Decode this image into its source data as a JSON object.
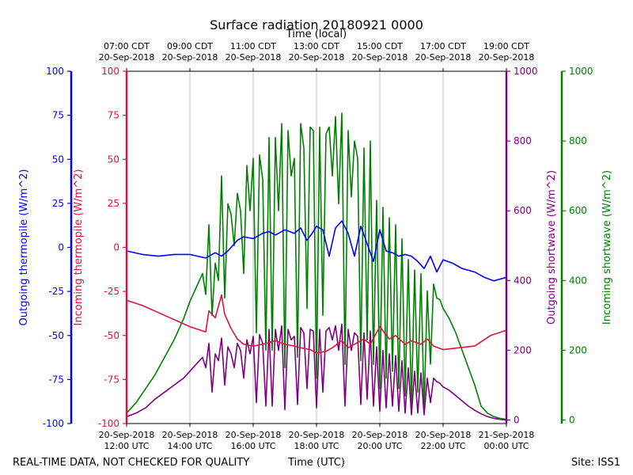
{
  "chart_data": {
    "type": "line",
    "title": "Surface radiation 20180921 0000",
    "top_axis_label": "Time (local)",
    "xlabel": "Time (UTC)",
    "footer_left": "REAL-TIME DATA, NOT CHECKED FOR QUALITY",
    "footer_right": "Site: ISS1",
    "x_domain": [
      12,
      24
    ],
    "bottom_ticks": [
      {
        "x": 12,
        "line1": "20-Sep-2018",
        "line2": "12:00 UTC"
      },
      {
        "x": 14,
        "line1": "20-Sep-2018",
        "line2": "14:00 UTC"
      },
      {
        "x": 16,
        "line1": "20-Sep-2018",
        "line2": "16:00 UTC"
      },
      {
        "x": 18,
        "line1": "20-Sep-2018",
        "line2": "18:00 UTC"
      },
      {
        "x": 20,
        "line1": "20-Sep-2018",
        "line2": "20:00 UTC"
      },
      {
        "x": 22,
        "line1": "20-Sep-2018",
        "line2": "22:00 UTC"
      },
      {
        "x": 24,
        "line1": "21-Sep-2018",
        "line2": "00:00 UTC"
      }
    ],
    "top_ticks": [
      {
        "x": 12,
        "line1": "07:00 CDT",
        "line2": "20-Sep-2018"
      },
      {
        "x": 14,
        "line1": "09:00 CDT",
        "line2": "20-Sep-2018"
      },
      {
        "x": 16,
        "line1": "11:00 CDT",
        "line2": "20-Sep-2018"
      },
      {
        "x": 18,
        "line1": "13:00 CDT",
        "line2": "20-Sep-2018"
      },
      {
        "x": 20,
        "line1": "15:00 CDT",
        "line2": "20-Sep-2018"
      },
      {
        "x": 22,
        "line1": "17:00 CDT",
        "line2": "20-Sep-2018"
      },
      {
        "x": 24,
        "line1": "19:00 CDT",
        "line2": "20-Sep-2018"
      }
    ],
    "axes": [
      {
        "id": "out_thermo",
        "label": "Outgoing thermopile (W/m^2)",
        "color": "#0000ff",
        "ylim": [
          -100,
          100
        ],
        "ticks": [
          -100,
          -75,
          -50,
          -25,
          0,
          25,
          50,
          75,
          100
        ]
      },
      {
        "id": "in_thermo",
        "label": "Incoming thermopile (W/m^2)",
        "color": "#dc143c",
        "ylim": [
          -100,
          100
        ],
        "ticks": [
          -100,
          -75,
          -50,
          -25,
          0,
          25,
          50,
          75,
          100
        ]
      },
      {
        "id": "out_sw",
        "label": "Outgoing shortwave (W/m^2)",
        "color": "#800080",
        "ylim": [
          -10,
          1000
        ],
        "ticks": [
          0,
          200,
          400,
          600,
          800,
          1000
        ]
      },
      {
        "id": "in_sw",
        "label": "Incoming shortwave (W/m^2)",
        "color": "#008000",
        "ylim": [
          -10,
          1000
        ],
        "ticks": [
          0,
          200,
          400,
          600,
          800,
          1000
        ]
      }
    ],
    "series": [
      {
        "name": "Incoming shortwave",
        "axis": "in_sw",
        "color": "#008000",
        "x": [
          12.0,
          12.3,
          12.6,
          12.9,
          13.2,
          13.5,
          13.8,
          14.0,
          14.2,
          14.4,
          14.5,
          14.6,
          14.7,
          14.8,
          14.9,
          15.0,
          15.1,
          15.2,
          15.3,
          15.4,
          15.5,
          15.6,
          15.7,
          15.8,
          15.9,
          16.0,
          16.1,
          16.2,
          16.3,
          16.4,
          16.5,
          16.6,
          16.7,
          16.8,
          16.9,
          17.0,
          17.1,
          17.2,
          17.3,
          17.4,
          17.5,
          17.6,
          17.7,
          17.8,
          17.9,
          18.0,
          18.1,
          18.2,
          18.3,
          18.4,
          18.5,
          18.6,
          18.7,
          18.8,
          18.9,
          19.0,
          19.1,
          19.2,
          19.3,
          19.4,
          19.5,
          19.6,
          19.7,
          19.8,
          19.9,
          20.0,
          20.1,
          20.2,
          20.3,
          20.4,
          20.5,
          20.6,
          20.7,
          20.8,
          20.9,
          21.0,
          21.1,
          21.2,
          21.3,
          21.4,
          21.5,
          21.6,
          21.7,
          21.8,
          21.9,
          22.0,
          22.2,
          22.4,
          22.6,
          22.8,
          23.0,
          23.2,
          23.4,
          23.6,
          23.8,
          24.0
        ],
        "y": [
          20,
          50,
          90,
          130,
          180,
          230,
          290,
          340,
          380,
          420,
          360,
          560,
          300,
          450,
          400,
          700,
          350,
          620,
          590,
          500,
          650,
          600,
          420,
          730,
          600,
          750,
          250,
          760,
          690,
          200,
          810,
          200,
          810,
          600,
          850,
          150,
          830,
          700,
          750,
          180,
          850,
          780,
          320,
          840,
          830,
          120,
          840,
          300,
          820,
          840,
          700,
          870,
          620,
          880,
          160,
          830,
          640,
          800,
          750,
          170,
          780,
          230,
          800,
          160,
          630,
          90,
          610,
          120,
          580,
          140,
          560,
          90,
          520,
          70,
          460,
          40,
          430,
          80,
          420,
          30,
          370,
          160,
          390,
          350,
          345,
          320,
          290,
          250,
          200,
          150,
          100,
          40,
          20,
          10,
          5,
          2
        ]
      },
      {
        "name": "Outgoing shortwave",
        "axis": "out_sw",
        "color": "#800080",
        "x": [
          12.0,
          12.3,
          12.6,
          12.9,
          13.2,
          13.5,
          13.8,
          14.0,
          14.2,
          14.4,
          14.5,
          14.6,
          14.7,
          14.8,
          14.9,
          15.0,
          15.1,
          15.2,
          15.3,
          15.4,
          15.5,
          15.6,
          15.7,
          15.8,
          15.9,
          16.0,
          16.1,
          16.2,
          16.3,
          16.4,
          16.5,
          16.6,
          16.7,
          16.8,
          16.9,
          17.0,
          17.1,
          17.2,
          17.3,
          17.4,
          17.5,
          17.6,
          17.7,
          17.8,
          17.9,
          18.0,
          18.1,
          18.2,
          18.3,
          18.4,
          18.5,
          18.6,
          18.7,
          18.8,
          18.9,
          19.0,
          19.1,
          19.2,
          19.3,
          19.4,
          19.5,
          19.6,
          19.7,
          19.8,
          19.9,
          20.0,
          20.1,
          20.2,
          20.3,
          20.4,
          20.5,
          20.6,
          20.7,
          20.8,
          20.9,
          21.0,
          21.1,
          21.2,
          21.3,
          21.4,
          21.5,
          21.6,
          21.7,
          21.8,
          21.9,
          22.0,
          22.2,
          22.4,
          22.6,
          22.8,
          23.0,
          23.2,
          23.4,
          23.6,
          23.8,
          24.0
        ],
        "y": [
          10,
          20,
          35,
          60,
          80,
          100,
          120,
          140,
          160,
          180,
          150,
          220,
          80,
          190,
          170,
          235,
          100,
          210,
          190,
          150,
          220,
          200,
          120,
          230,
          190,
          240,
          50,
          245,
          220,
          40,
          260,
          40,
          260,
          200,
          270,
          30,
          260,
          230,
          240,
          45,
          265,
          250,
          90,
          260,
          255,
          35,
          260,
          80,
          255,
          265,
          230,
          270,
          200,
          275,
          40,
          260,
          200,
          250,
          240,
          45,
          250,
          60,
          255,
          40,
          210,
          25,
          200,
          35,
          190,
          40,
          185,
          25,
          170,
          20,
          150,
          15,
          140,
          20,
          135,
          15,
          120,
          50,
          120,
          110,
          105,
          95,
          85,
          70,
          55,
          40,
          28,
          18,
          10,
          5,
          2,
          0
        ]
      },
      {
        "name": "Incoming thermopile",
        "axis": "in_thermo",
        "color": "#dc143c",
        "x": [
          12.0,
          12.5,
          13.0,
          13.5,
          14.0,
          14.5,
          14.6,
          14.8,
          15.0,
          15.1,
          15.2,
          15.3,
          15.5,
          15.7,
          16.0,
          16.3,
          16.5,
          16.7,
          17.0,
          17.3,
          17.5,
          17.8,
          18.0,
          18.3,
          18.5,
          18.8,
          19.0,
          19.3,
          19.5,
          19.7,
          20.0,
          20.3,
          20.5,
          20.8,
          21.0,
          21.3,
          21.5,
          21.7,
          22.0,
          22.5,
          23.0,
          23.5,
          24.0
        ],
        "y": [
          -30,
          -33,
          -37,
          -41,
          -45,
          -48,
          -36,
          -40,
          -27,
          -38,
          -42,
          -46,
          -52,
          -55,
          -56,
          -55,
          -54,
          -53,
          -55,
          -56,
          -57,
          -58,
          -60,
          -59,
          -57,
          -53,
          -57,
          -54,
          -52,
          -55,
          -45,
          -52,
          -50,
          -55,
          -53,
          -55,
          -52,
          -56,
          -58,
          -57,
          -56,
          -50,
          -47
        ]
      },
      {
        "name": "Outgoing thermopile",
        "axis": "out_thermo",
        "color": "#0000ff",
        "x": [
          12.0,
          12.5,
          13.0,
          13.5,
          14.0,
          14.5,
          14.8,
          15.0,
          15.2,
          15.5,
          15.7,
          16.0,
          16.3,
          16.5,
          16.7,
          17.0,
          17.3,
          17.5,
          17.7,
          17.9,
          18.0,
          18.2,
          18.4,
          18.6,
          18.8,
          19.0,
          19.2,
          19.4,
          19.6,
          19.8,
          20.0,
          20.2,
          20.4,
          20.6,
          20.8,
          21.0,
          21.2,
          21.4,
          21.6,
          21.8,
          22.0,
          22.3,
          22.6,
          23.0,
          23.3,
          23.6,
          24.0
        ],
        "y": [
          -2,
          -4,
          -5,
          -4,
          -4,
          -6,
          -3,
          -5,
          -2,
          4,
          6,
          5,
          8,
          9,
          7,
          10,
          8,
          11,
          4,
          9,
          12,
          10,
          -5,
          11,
          15,
          8,
          -5,
          12,
          2,
          -8,
          10,
          -2,
          -3,
          -5,
          -4,
          -5,
          -8,
          -12,
          -5,
          -14,
          -7,
          -9,
          -12,
          -14,
          -17,
          -19,
          -17
        ]
      }
    ]
  }
}
